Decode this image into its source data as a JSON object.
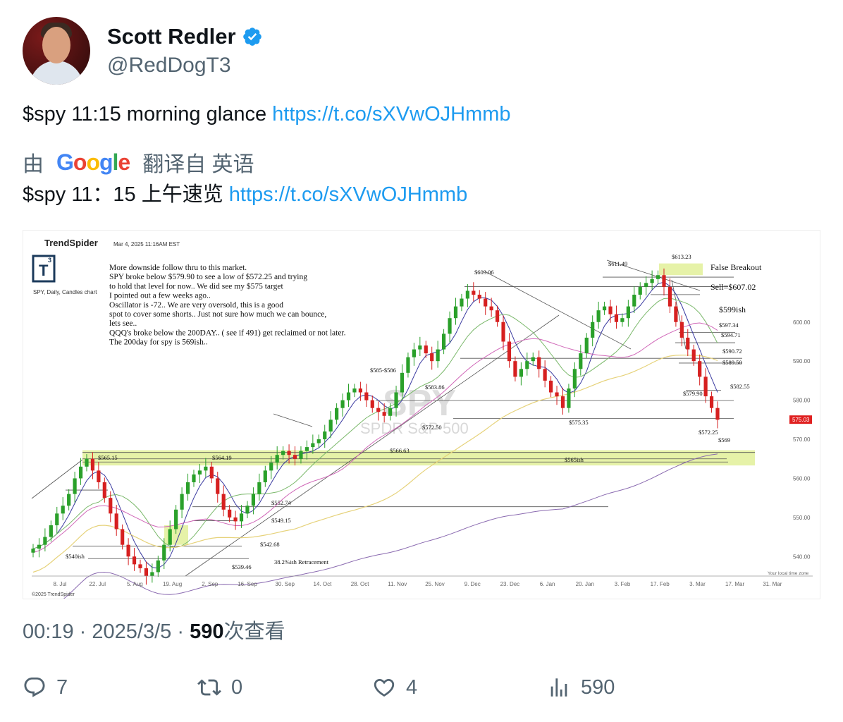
{
  "author": {
    "display_name": "Scott Redler",
    "handle": "@RedDogT3",
    "verified": true,
    "avatar_icon": "avatar-photo"
  },
  "tweet": {
    "text": "$spy 11:15 morning glance ",
    "link": "https://t.co/sXVwOJHmmb"
  },
  "translation": {
    "by": "由",
    "provider": "Google",
    "from_label": "翻译自 英语",
    "text": "$spy 11：15 上午速览 ",
    "link": "https://t.co/sXVwOJHmmb"
  },
  "meta": {
    "time": "00:19",
    "sep": "·",
    "date": "2025/3/5",
    "views": "590",
    "views_suffix": "次查看"
  },
  "actions": {
    "replies": "7",
    "retweets": "0",
    "likes": "4",
    "views": "590"
  },
  "colors": {
    "link": "#1d9bf0",
    "verified": "#1d9bf0",
    "up_candle": "#2aa02a",
    "down_candle": "#d62020",
    "zone": "#e6f2a8"
  },
  "chart_data": {
    "type": "candlestick",
    "brand": "TrendSpider",
    "timestamp": "Mar 4, 2025 11:16AM EST",
    "logo_text": "T",
    "logo_sup": "3",
    "subtitle": "SPY, Daily, Candles chart",
    "watermark_symbol": "SPY",
    "watermark_name": "SPDR S&P 500",
    "copyright": "©2025 TrendSpider",
    "local_tz": "Your local time zone",
    "commentary": [
      "More downside follow thru to this market.",
      "SPY broke below $579.90 to see a low of $572.25 and trying",
      "to hold that level for now.. We did see my $575 target",
      "I pointed out a few weeks ago..",
      "Oscillator is -72.. We are very oversold, this is a good",
      "spot to cover some shorts.. Just not sure how much we can bounce,",
      "lets see..",
      "QQQ's broke below the 200DAY.. ( see if 491) get reclaimed or not later.",
      "The 200day for spy is 569ish.."
    ],
    "x_ticks": [
      "8. Jul",
      "22. Jul",
      "5. Aug",
      "19. Aug",
      "2. Sep",
      "16. Sep",
      "30. Sep",
      "14. Oct",
      "28. Oct",
      "11. Nov",
      "25. Nov",
      "9. Dec",
      "23. Dec",
      "6. Jan",
      "20. Jan",
      "3. Feb",
      "17. Feb",
      "3. Mar",
      "17. Mar",
      "31. Mar"
    ],
    "y_ticks": [
      "600.00",
      "590.00",
      "580.00",
      "570.00",
      "560.00",
      "550.00",
      "540.00"
    ],
    "ylim": [
      535,
      618
    ],
    "current_price": "575.03",
    "levels": [
      {
        "label": "$613.23",
        "value": 613.23
      },
      {
        "label": "$611.49",
        "value": 611.49
      },
      {
        "label": "$609.06",
        "value": 609.06
      },
      {
        "label": "Sell=$607.02",
        "value": 607.02
      },
      {
        "label": "$599ish",
        "value": 599
      },
      {
        "label": "$597.34",
        "value": 597.34
      },
      {
        "label": "$594.71",
        "value": 594.71
      },
      {
        "label": "$590.72",
        "value": 590.72
      },
      {
        "label": "$589.50",
        "value": 589.5
      },
      {
        "label": "$585-$586",
        "value": 585.5
      },
      {
        "label": "$583.86",
        "value": 583.86
      },
      {
        "label": "$582.55",
        "value": 582.55
      },
      {
        "label": "$579.90",
        "value": 579.9
      },
      {
        "label": "$575.35",
        "value": 575.35
      },
      {
        "label": "$572.50",
        "value": 572.5
      },
      {
        "label": "$572.25",
        "value": 572.25
      },
      {
        "label": "$569",
        "value": 569
      },
      {
        "label": "$566.63",
        "value": 566.63
      },
      {
        "label": "$565ish",
        "value": 565
      },
      {
        "label": "$565.15",
        "value": 565.15
      },
      {
        "label": "$564.19",
        "value": 564.19
      },
      {
        "label": "$552.74",
        "value": 552.74
      },
      {
        "label": "$549.15",
        "value": 549.15
      },
      {
        "label": "$542.68",
        "value": 542.68
      },
      {
        "label": "$539.46",
        "value": 539.46
      },
      {
        "label": "$540ish",
        "value": 540
      },
      {
        "label": "38.2%ish Retracement",
        "value": 538
      }
    ],
    "annotations": [
      "False Breakout"
    ],
    "close_series": [
      542,
      543,
      545,
      548,
      551,
      553,
      556,
      560,
      563,
      565,
      562,
      559,
      555,
      551,
      547,
      543,
      540,
      538,
      537,
      535,
      536,
      539,
      543,
      547,
      552,
      556,
      559,
      561,
      562,
      563,
      560,
      556,
      552,
      550,
      549,
      551,
      553,
      556,
      559,
      562,
      564,
      566,
      567,
      566,
      565,
      567,
      568,
      569,
      570,
      572,
      575,
      578,
      580,
      582,
      583,
      582,
      580,
      578,
      577,
      576,
      578,
      582,
      587,
      591,
      593,
      594,
      592,
      590,
      593,
      597,
      601,
      604,
      606,
      608,
      607,
      606,
      604,
      603,
      600,
      595,
      590,
      586,
      588,
      590,
      591,
      588,
      585,
      582,
      581,
      578,
      583,
      588,
      592,
      596,
      600,
      603,
      604,
      602,
      600,
      601,
      604,
      607,
      609,
      610,
      611,
      612,
      609,
      604,
      600,
      596,
      593,
      590,
      586,
      581,
      578,
      575
    ]
  }
}
